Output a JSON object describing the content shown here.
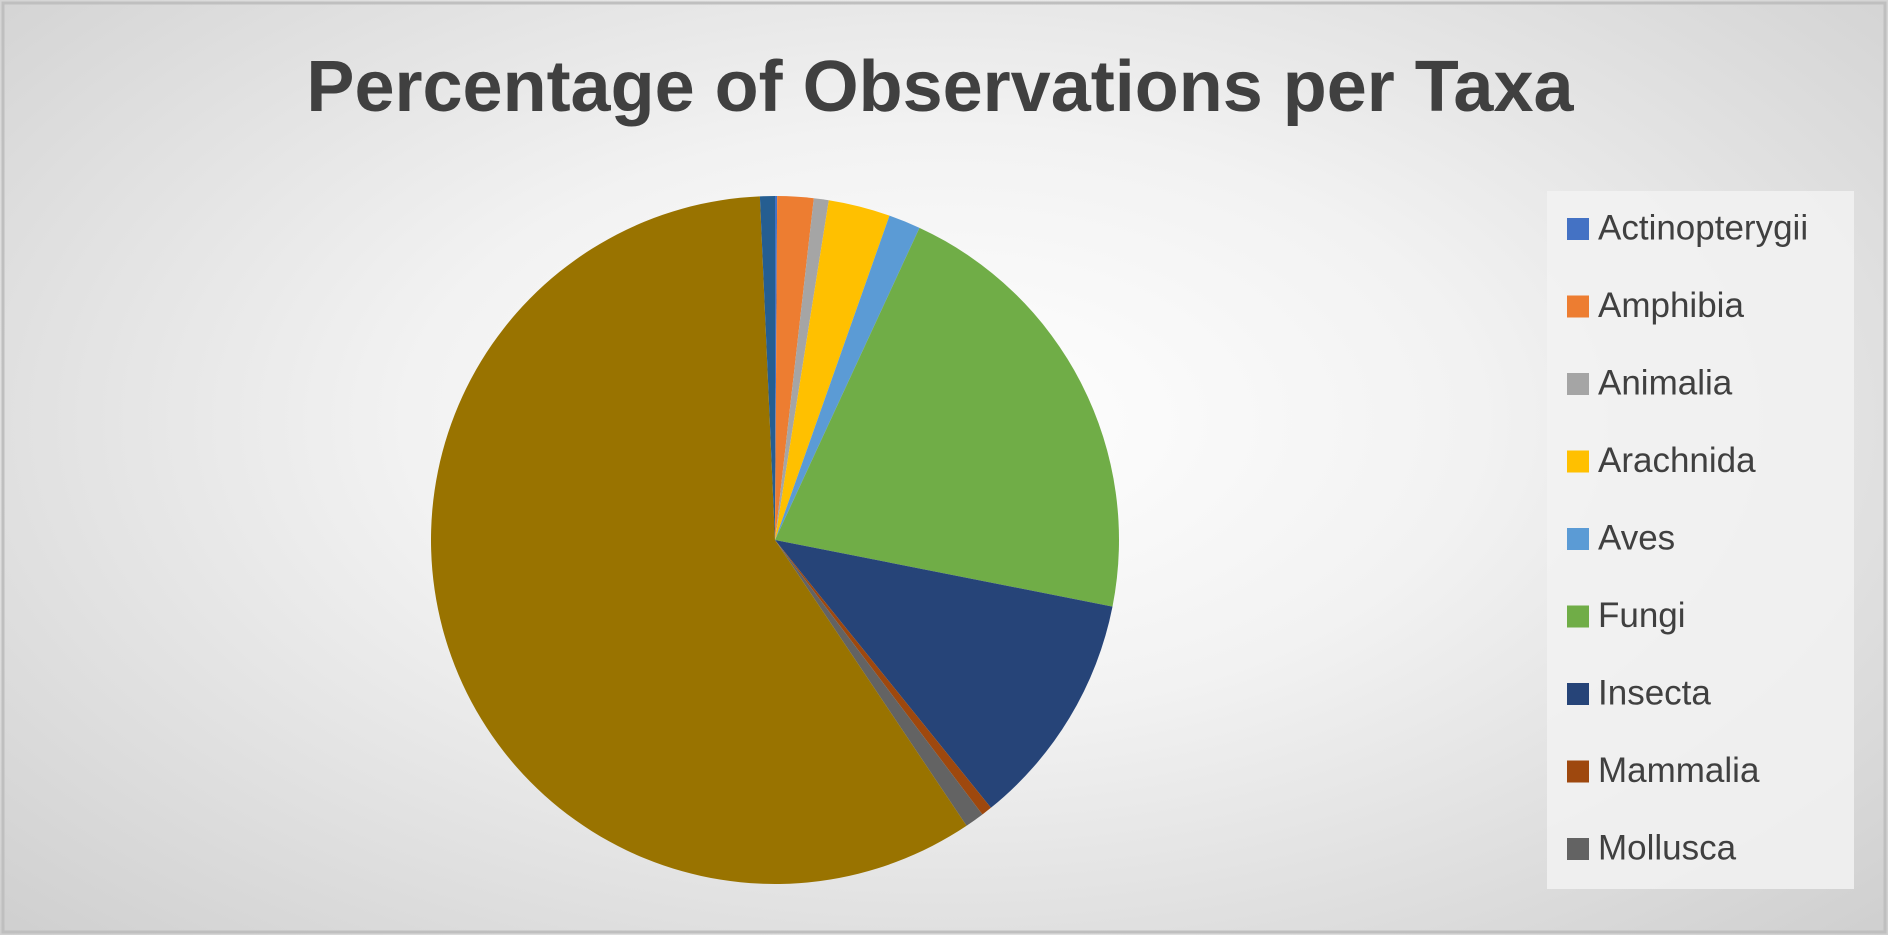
{
  "chart_data": {
    "type": "pie",
    "title": "Percentage of Observations per Taxa",
    "categories": [
      "Actinopterygii",
      "Amphibia",
      "Animalia",
      "Arachnida",
      "Aves",
      "Fungi",
      "Insecta",
      "Mammalia",
      "Mollusca",
      null,
      null
    ],
    "values": [
      0.1,
      1.7,
      0.7,
      2.9,
      1.5,
      21.2,
      11.1,
      0.5,
      0.9,
      58.7,
      0.7
    ],
    "colors": [
      "#4472c4",
      "#ed7d31",
      "#a5a5a5",
      "#ffc000",
      "#5b9bd5",
      "#70ad47",
      "#264478",
      "#9e480e",
      "#636363",
      "#997300",
      "#255e91"
    ],
    "legend": "right"
  }
}
